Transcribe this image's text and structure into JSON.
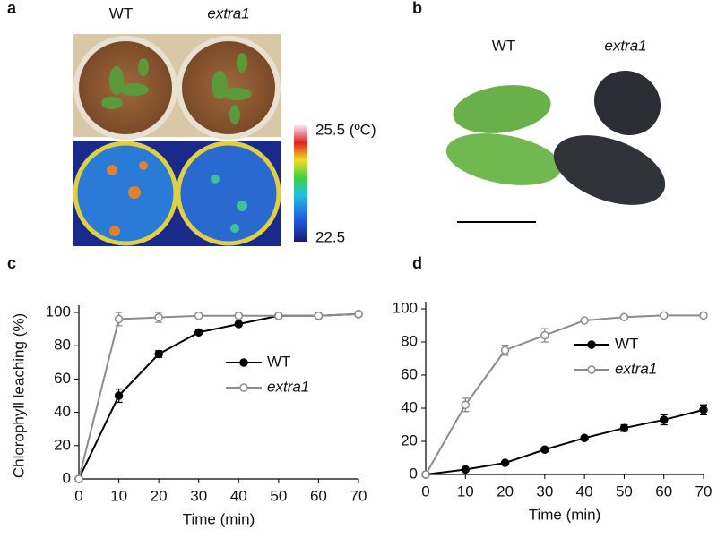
{
  "panels": {
    "a": {
      "label": "a",
      "genotypes": [
        "WT",
        "extra1"
      ],
      "scale_max": "25.5 (ºC)",
      "scale_min": "22.5"
    },
    "b": {
      "label": "b",
      "genotypes": [
        "WT",
        "extra1"
      ]
    }
  },
  "chart_data": [
    {
      "type": "line",
      "label": "c",
      "ylabel": "Chlorophyll leaching (%)",
      "xlabel": "Time (min)",
      "x": [
        0,
        10,
        20,
        30,
        40,
        50,
        60,
        70
      ],
      "xlim": [
        0,
        70
      ],
      "xticks": [
        0,
        10,
        20,
        30,
        40,
        50,
        60,
        70
      ],
      "ylim": [
        0,
        100
      ],
      "yticks": [
        0,
        20,
        40,
        60,
        80,
        100
      ],
      "series": [
        {
          "name": "WT",
          "color": "#000000",
          "values": [
            0,
            50,
            75,
            88,
            93,
            98,
            98,
            99
          ],
          "errors": [
            0,
            4,
            2,
            1,
            1,
            1,
            1,
            1
          ]
        },
        {
          "name": "extra1",
          "color": "#8c8c8c",
          "values": [
            0,
            96,
            97,
            98,
            98,
            98,
            98,
            99
          ],
          "errors": [
            0,
            4,
            3,
            1,
            1,
            1,
            1,
            1
          ]
        }
      ]
    },
    {
      "type": "line",
      "label": "d",
      "xlabel": "Time (min)",
      "x": [
        0,
        10,
        20,
        30,
        40,
        50,
        60,
        70
      ],
      "xlim": [
        0,
        70
      ],
      "xticks": [
        0,
        10,
        20,
        30,
        40,
        50,
        60,
        70
      ],
      "ylim": [
        0,
        100
      ],
      "yticks": [
        0,
        20,
        40,
        60,
        80,
        100
      ],
      "series": [
        {
          "name": "WT",
          "color": "#000000",
          "values": [
            0,
            3,
            7,
            15,
            22,
            28,
            33,
            39
          ],
          "errors": [
            0,
            1,
            1,
            1,
            1,
            2,
            3,
            3
          ]
        },
        {
          "name": "extra1",
          "color": "#8c8c8c",
          "values": [
            0,
            42,
            75,
            84,
            93,
            95,
            96,
            96
          ],
          "errors": [
            0,
            4,
            3,
            4,
            1,
            1,
            1,
            1
          ]
        }
      ]
    }
  ]
}
